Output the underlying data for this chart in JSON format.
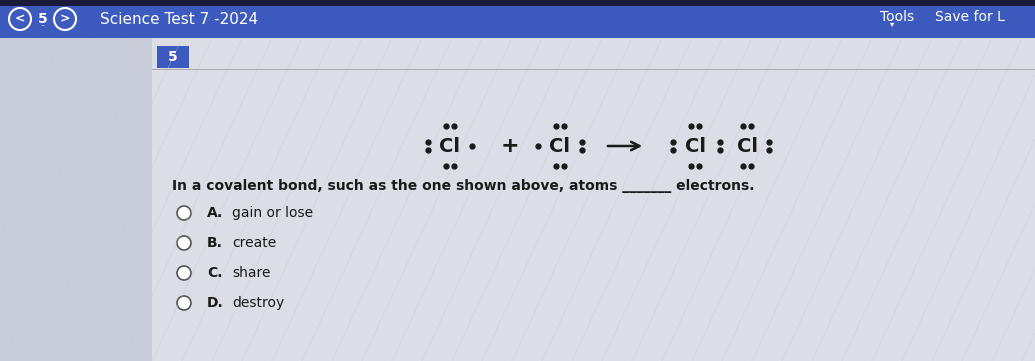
{
  "header_bg": "#3d5bbf",
  "header_text": "Science Test 7 -2024",
  "header_tools": "Tools",
  "header_save": "Save for L",
  "content_bg": "#dcdee6",
  "left_sidebar_bg": "#c8cbd8",
  "question_num": "5",
  "question_text_part1": "In a covalent bond, such as the one shown above, atoms ",
  "question_text_blank": "______",
  "question_text_part2": " electrons.",
  "options": [
    "A.   gain or lose",
    "B.   create",
    "C.   share",
    "D.   destroy"
  ],
  "header_fontsize": 11,
  "option_fontsize": 10,
  "question_fontsize": 10
}
